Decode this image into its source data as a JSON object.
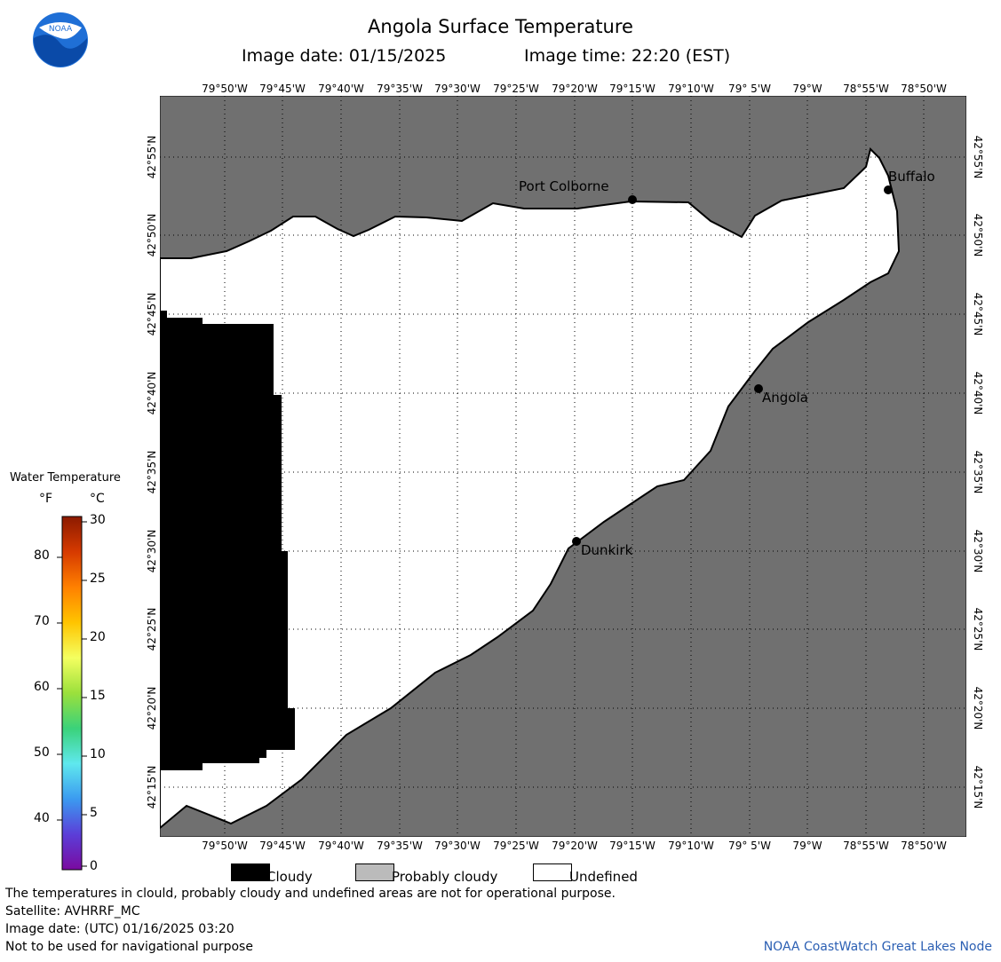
{
  "header": {
    "title": "Angola Surface Temperature",
    "image_date_label": "Image date: 01/15/2025",
    "image_time_label": "Image time: 22:20 (EST)"
  },
  "logo": {
    "text": "NOAA"
  },
  "map": {
    "lon_labels": [
      "79°50'W",
      "79°45'W",
      "79°40'W",
      "79°35'W",
      "79°30'W",
      "79°25'W",
      "79°20'W",
      "79°15'W",
      "79°10'W",
      "79° 5'W",
      "79°W",
      "78°55'W",
      "78°50'W"
    ],
    "lat_labels": [
      "42°55'N",
      "42°50'N",
      "42°45'N",
      "42°40'N",
      "42°35'N",
      "42°30'N",
      "42°25'N",
      "42°20'N",
      "42°15'N"
    ],
    "cities": [
      {
        "name": "Port Colborne"
      },
      {
        "name": "Buffalo"
      },
      {
        "name": "Angola"
      },
      {
        "name": "Dunkirk"
      }
    ],
    "colors": {
      "land": "#707070",
      "water_undefined": "#ffffff",
      "cloudy": "#000000",
      "grid": "#000000"
    }
  },
  "colorbar": {
    "title": "Water Temperature",
    "unit_f": "°F",
    "unit_c": "°C",
    "f_ticks": [
      "80",
      "70",
      "60",
      "50",
      "40"
    ],
    "c_ticks": [
      "30",
      "25",
      "20",
      "15",
      "10",
      "5",
      "0"
    ]
  },
  "legend": {
    "cloudy": "Cloudy",
    "probably_cloudy": "Probably cloudy",
    "undefined": "Undefined",
    "colors": {
      "cloudy": "#000000",
      "probably_cloudy": "#bbbbbb",
      "undefined": "#ffffff"
    }
  },
  "footer": {
    "line1": "The temperatures in clould, probably cloudy and undefined areas are not for operational purpose.",
    "line2": "Satellite: AVHRRF_MC",
    "line3": "Image date: (UTC) 01/16/2025  03:20",
    "line4": "Not to be used for navigational purpose",
    "credit": "NOAA CoastWatch Great Lakes Node"
  }
}
